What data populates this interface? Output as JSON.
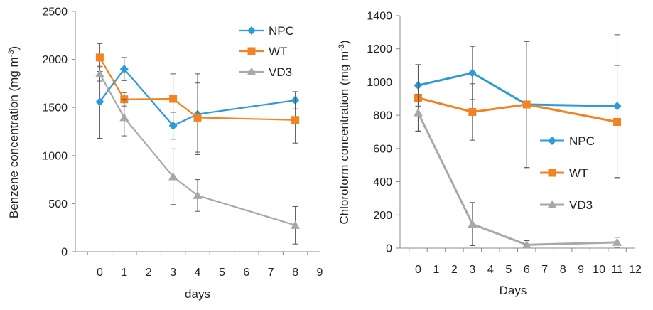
{
  "chart_data": [
    {
      "type": "line",
      "xlabel": "days",
      "ylabel": "Benzene concentration (mg m",
      "ylabel_sup": "-3",
      "ylabel_close": ")",
      "xlim": [
        -1,
        9
      ],
      "ylim": [
        0,
        2500
      ],
      "xticks": [
        0,
        1,
        2,
        3,
        4,
        5,
        6,
        7,
        8,
        9
      ],
      "yticks": [
        0,
        500,
        1000,
        1500,
        2000,
        2500
      ],
      "legend": "top-right",
      "series": [
        {
          "name": "NPC",
          "color": "#2E9BD6",
          "marker": "diamond",
          "x": [
            0,
            1,
            3,
            4,
            8
          ],
          "y": [
            1560,
            1900,
            1310,
            1430,
            1575
          ],
          "err": [
            380,
            120,
            140,
            420,
            90
          ]
        },
        {
          "name": "WT",
          "color": "#F28322",
          "marker": "square",
          "x": [
            0,
            1,
            3,
            4,
            8
          ],
          "y": [
            2020,
            1585,
            1590,
            1395,
            1370
          ],
          "err": [
            145,
            70,
            260,
            360,
            240
          ]
        },
        {
          "name": "VD3",
          "color": "#A8A8A8",
          "marker": "triangle",
          "x": [
            0,
            1,
            3,
            4,
            8
          ],
          "y": [
            1850,
            1395,
            780,
            585,
            275
          ],
          "err": [
            75,
            190,
            290,
            165,
            195
          ]
        }
      ]
    },
    {
      "type": "line",
      "xlabel": "Days",
      "ylabel": "Chloroform concentration (mg m",
      "ylabel_sup": "-3",
      "ylabel_close": ")",
      "xlim": [
        -1,
        12
      ],
      "ylim": [
        0,
        1400
      ],
      "xticks": [
        0,
        1,
        2,
        3,
        4,
        5,
        6,
        7,
        8,
        9,
        10,
        11,
        12
      ],
      "yticks": [
        0,
        200,
        400,
        600,
        800,
        1000,
        1200,
        1400
      ],
      "legend": "center-right",
      "series": [
        {
          "name": "NPC",
          "color": "#2E9BD6",
          "marker": "diamond",
          "x": [
            0,
            3,
            6,
            11
          ],
          "y": [
            980,
            1055,
            865,
            855
          ],
          "err": [
            125,
            160,
            380,
            430
          ]
        },
        {
          "name": "WT",
          "color": "#F28322",
          "marker": "square",
          "x": [
            0,
            3,
            6,
            11
          ],
          "y": [
            905,
            820,
            865,
            760
          ],
          "err": [
            200,
            170,
            380,
            340
          ]
        },
        {
          "name": "VD3",
          "color": "#A8A8A8",
          "marker": "triangle",
          "x": [
            0,
            3,
            6,
            11
          ],
          "y": [
            815,
            145,
            20,
            35
          ],
          "err": [
            110,
            130,
            25,
            30
          ]
        }
      ]
    }
  ]
}
